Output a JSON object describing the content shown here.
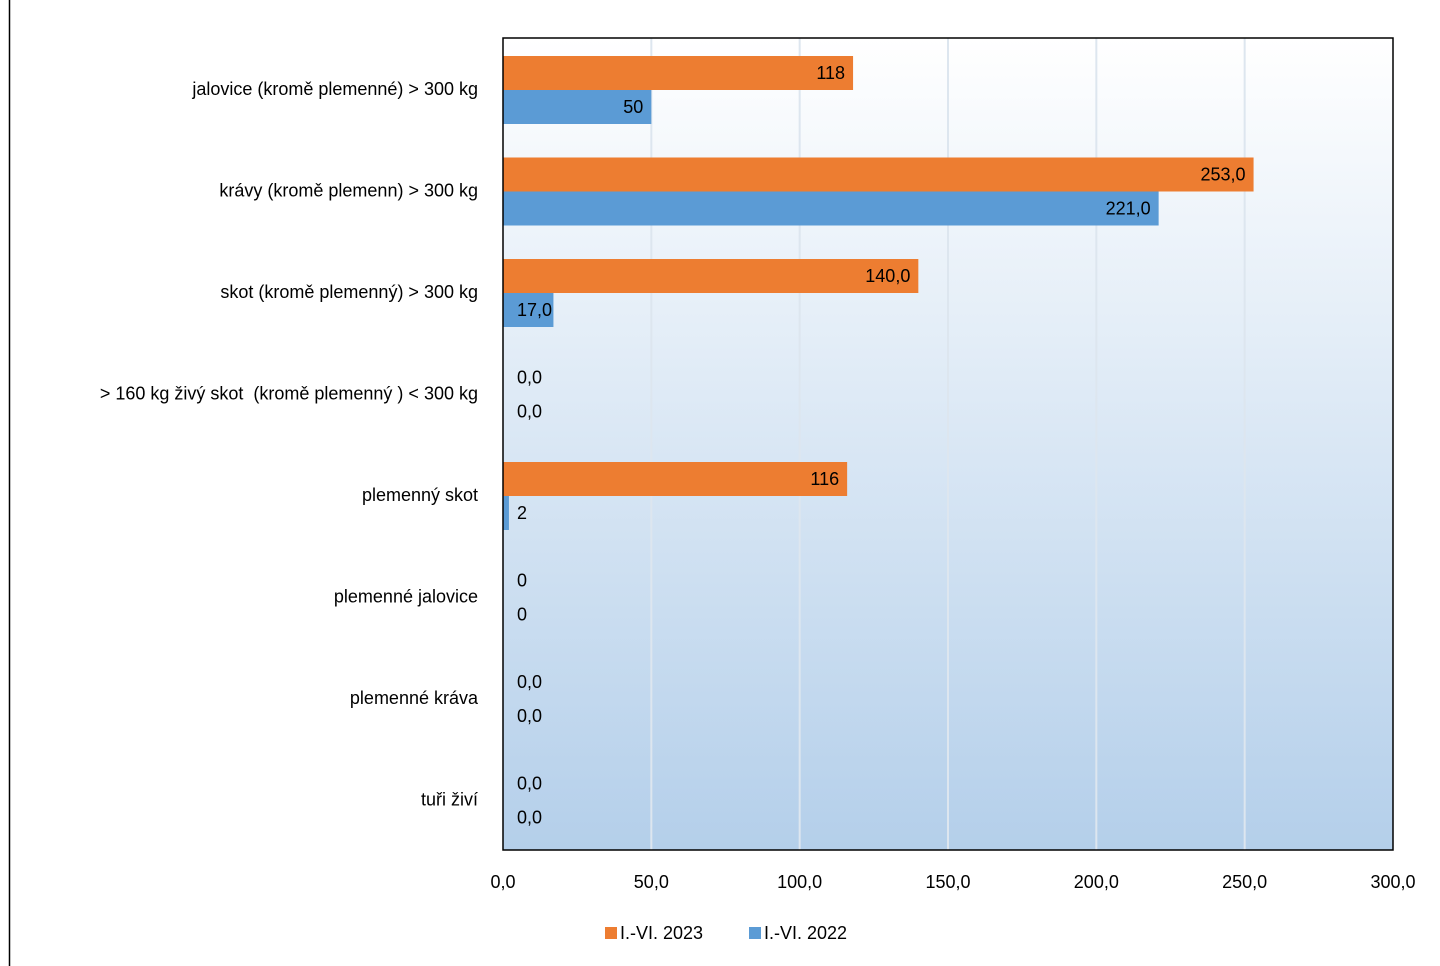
{
  "chart_data": {
    "type": "hbar",
    "categories": [
      "jalovice (kromě plemenné) > 300 kg",
      "krávy (kromě plemenn) > 300 kg",
      "skot (kromě plemenný) > 300 kg",
      "> 160 kg živý skot  (kromě plemenný ) < 300 kg",
      "plemenný skot",
      "plemenné jalovice",
      "plemenné kráva",
      "tuři živí"
    ],
    "series": [
      {
        "name": "I.-VI. 2023",
        "color": "#ed7d31",
        "values": [
          118,
          253,
          140,
          0,
          116,
          0,
          0,
          0
        ],
        "value_labels": [
          "118",
          "253,0",
          "140,0",
          "0,0",
          "116",
          "0",
          "0,0",
          "0,0"
        ]
      },
      {
        "name": "I.-VI. 2022",
        "color": "#5b9bd5",
        "values": [
          50,
          221,
          17,
          0,
          2,
          0,
          0,
          0
        ],
        "value_labels": [
          "50",
          "221,0",
          "17,0",
          "0,0",
          "2",
          "0",
          "0,0",
          "0,0"
        ]
      }
    ],
    "xlim": [
      0,
      300
    ],
    "xticks": [
      {
        "value": 0,
        "label": "0,0"
      },
      {
        "value": 50,
        "label": "50,0"
      },
      {
        "value": 100,
        "label": "100,0"
      },
      {
        "value": 150,
        "label": "150,0"
      },
      {
        "value": 200,
        "label": "200,0"
      },
      {
        "value": 250,
        "label": "250,0"
      },
      {
        "value": 300,
        "label": "300,0"
      }
    ],
    "grid": true,
    "legend": "bottom"
  }
}
